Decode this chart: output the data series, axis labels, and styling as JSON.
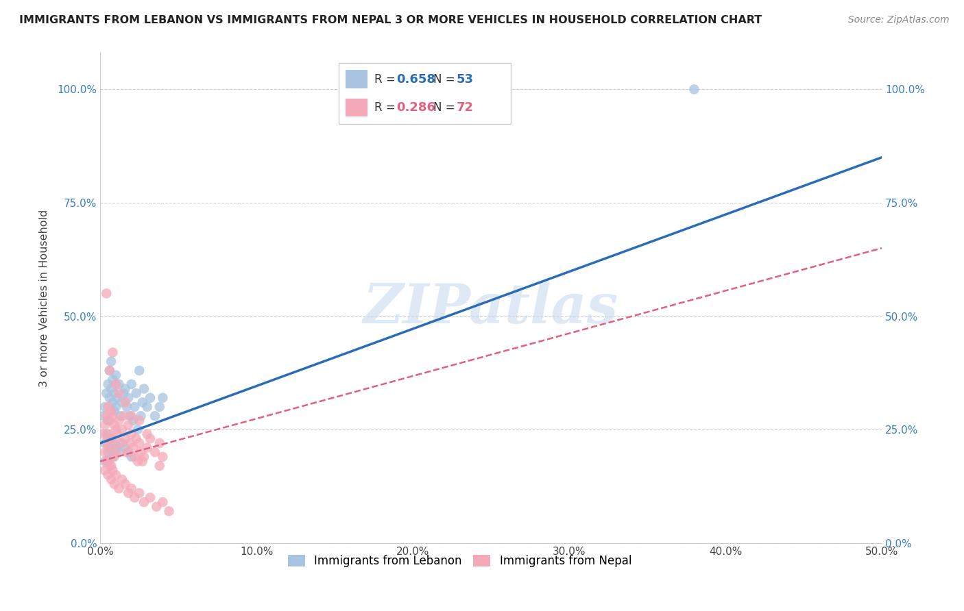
{
  "title": "IMMIGRANTS FROM LEBANON VS IMMIGRANTS FROM NEPAL 3 OR MORE VEHICLES IN HOUSEHOLD CORRELATION CHART",
  "source": "Source: ZipAtlas.com",
  "ylabel": "3 or more Vehicles in Household",
  "xlim": [
    0.0,
    0.5
  ],
  "ylim": [
    0.0,
    1.05
  ],
  "xtick_labels": [
    "0.0%",
    "10.0%",
    "20.0%",
    "30.0%",
    "40.0%",
    "50.0%"
  ],
  "xtick_values": [
    0.0,
    0.1,
    0.2,
    0.3,
    0.4,
    0.5
  ],
  "ytick_labels": [
    "0.0%",
    "25.0%",
    "50.0%",
    "75.0%",
    "100.0%"
  ],
  "ytick_values": [
    0.0,
    0.25,
    0.5,
    0.75,
    1.0
  ],
  "lebanon_color": "#a8c4e0",
  "nepal_color": "#f4a9b8",
  "lebanon_line_color": "#2b6cb8",
  "nepal_line_color": "#e06080",
  "lebanon_R": 0.658,
  "lebanon_N": 53,
  "nepal_R": 0.286,
  "nepal_N": 72,
  "watermark": "ZIPatlas",
  "legend_label_lebanon": "Immigrants from Lebanon",
  "legend_label_nepal": "Immigrants from Nepal",
  "lebanon_line_x0": 0.0,
  "lebanon_line_y0": 0.22,
  "lebanon_line_x1": 0.5,
  "lebanon_line_y1": 0.85,
  "nepal_line_x0": 0.0,
  "nepal_line_y0": 0.18,
  "nepal_line_x1": 0.5,
  "nepal_line_y1": 0.65,
  "lebanon_x": [
    0.002,
    0.003,
    0.004,
    0.005,
    0.005,
    0.006,
    0.006,
    0.007,
    0.007,
    0.008,
    0.008,
    0.009,
    0.009,
    0.01,
    0.01,
    0.011,
    0.012,
    0.013,
    0.014,
    0.015,
    0.016,
    0.017,
    0.018,
    0.019,
    0.02,
    0.021,
    0.022,
    0.023,
    0.024,
    0.025,
    0.026,
    0.027,
    0.028,
    0.03,
    0.032,
    0.035,
    0.038,
    0.04,
    0.003,
    0.004,
    0.005,
    0.006,
    0.007,
    0.008,
    0.009,
    0.01,
    0.012,
    0.014,
    0.016,
    0.018,
    0.02,
    0.38,
    0.003
  ],
  "lebanon_y": [
    0.28,
    0.3,
    0.33,
    0.35,
    0.27,
    0.32,
    0.38,
    0.34,
    0.4,
    0.31,
    0.36,
    0.29,
    0.33,
    0.3,
    0.37,
    0.32,
    0.35,
    0.28,
    0.31,
    0.33,
    0.34,
    0.3,
    0.32,
    0.28,
    0.35,
    0.27,
    0.3,
    0.33,
    0.25,
    0.38,
    0.28,
    0.31,
    0.34,
    0.3,
    0.32,
    0.28,
    0.3,
    0.32,
    0.22,
    0.24,
    0.2,
    0.21,
    0.23,
    0.19,
    0.22,
    0.21,
    0.2,
    0.22,
    0.21,
    0.2,
    0.19,
    1.0,
    0.18
  ],
  "nepal_x": [
    0.002,
    0.003,
    0.003,
    0.004,
    0.004,
    0.005,
    0.005,
    0.005,
    0.006,
    0.006,
    0.007,
    0.007,
    0.007,
    0.008,
    0.008,
    0.009,
    0.009,
    0.01,
    0.01,
    0.011,
    0.012,
    0.013,
    0.014,
    0.015,
    0.016,
    0.017,
    0.018,
    0.019,
    0.02,
    0.021,
    0.022,
    0.023,
    0.024,
    0.025,
    0.026,
    0.027,
    0.028,
    0.03,
    0.032,
    0.035,
    0.038,
    0.04,
    0.003,
    0.004,
    0.005,
    0.006,
    0.007,
    0.008,
    0.009,
    0.01,
    0.012,
    0.014,
    0.016,
    0.018,
    0.02,
    0.022,
    0.025,
    0.028,
    0.032,
    0.036,
    0.04,
    0.044,
    0.004,
    0.006,
    0.008,
    0.01,
    0.012,
    0.016,
    0.02,
    0.025,
    0.03,
    0.038
  ],
  "nepal_y": [
    0.24,
    0.26,
    0.2,
    0.28,
    0.22,
    0.3,
    0.24,
    0.18,
    0.27,
    0.21,
    0.29,
    0.23,
    0.17,
    0.28,
    0.22,
    0.26,
    0.19,
    0.25,
    0.2,
    0.24,
    0.27,
    0.22,
    0.25,
    0.28,
    0.23,
    0.2,
    0.26,
    0.22,
    0.24,
    0.21,
    0.19,
    0.23,
    0.18,
    0.22,
    0.2,
    0.18,
    0.19,
    0.21,
    0.23,
    0.2,
    0.17,
    0.19,
    0.16,
    0.18,
    0.15,
    0.17,
    0.14,
    0.16,
    0.13,
    0.15,
    0.12,
    0.14,
    0.13,
    0.11,
    0.12,
    0.1,
    0.11,
    0.09,
    0.1,
    0.08,
    0.09,
    0.07,
    0.55,
    0.38,
    0.42,
    0.35,
    0.33,
    0.31,
    0.28,
    0.27,
    0.24,
    0.22
  ]
}
